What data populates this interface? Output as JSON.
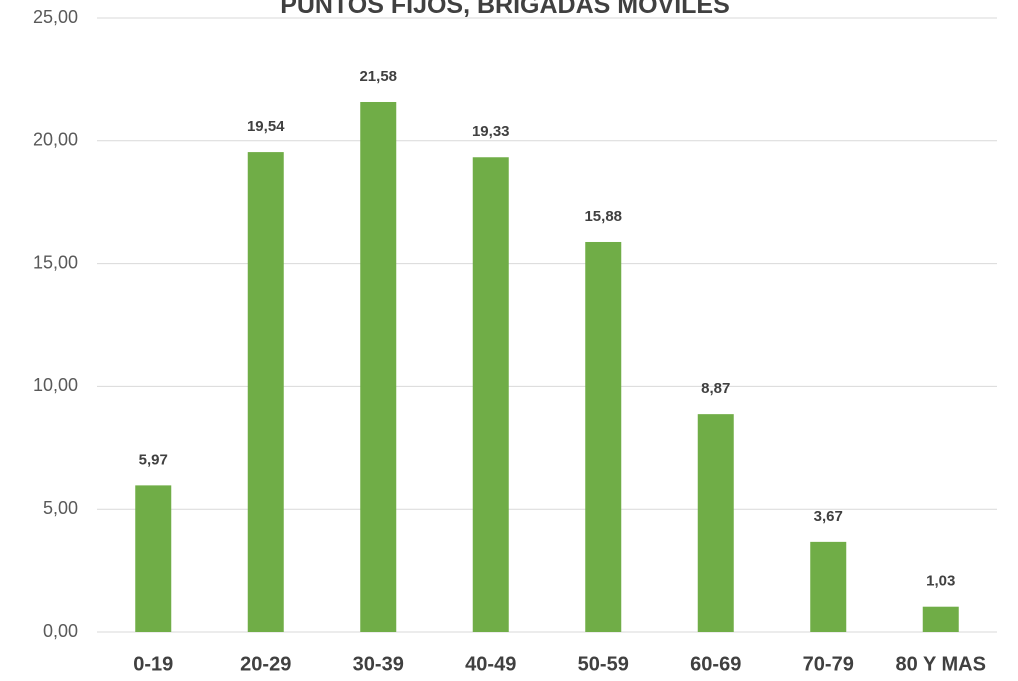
{
  "chart_data": {
    "type": "bar",
    "title": "PUNTOS FIJOS, BRIGADAS MOVILES",
    "categories": [
      "0-19",
      "20-29",
      "30-39",
      "40-49",
      "50-59",
      "60-69",
      "70-79",
      "80 Y MAS"
    ],
    "values": [
      5.97,
      19.54,
      21.58,
      19.33,
      15.88,
      8.87,
      3.67,
      1.03
    ],
    "value_labels": [
      "5,97",
      "19,54",
      "21,58",
      "19,33",
      "15,88",
      "8,87",
      "3,67",
      "1,03"
    ],
    "color": "#70ad47",
    "ylim": [
      0,
      25
    ],
    "yticks": [
      {
        "value": 0,
        "label": "0,00"
      },
      {
        "value": 5,
        "label": "5,00"
      },
      {
        "value": 10,
        "label": "10,00"
      },
      {
        "value": 15,
        "label": "15,00"
      },
      {
        "value": 20,
        "label": "20,00"
      },
      {
        "value": 25,
        "label": "25,00"
      }
    ],
    "grid": true
  }
}
